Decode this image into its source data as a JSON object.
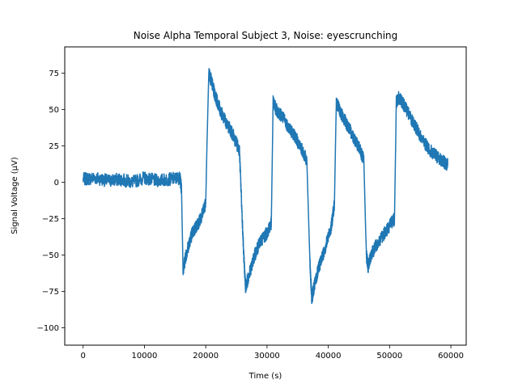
{
  "chart_data": {
    "type": "line",
    "title": "Noise Alpha Temporal Subject 3, Noise: eyescrunching",
    "xlabel": "Time (s)",
    "ylabel": "Signal Voltage (μV)",
    "xlim": [
      -3000,
      62500
    ],
    "ylim": [
      -112,
      93
    ],
    "xticks": [
      0,
      10000,
      20000,
      30000,
      40000,
      50000,
      60000
    ],
    "xtick_labels": [
      "0",
      "10000",
      "20000",
      "30000",
      "40000",
      "50000",
      "60000"
    ],
    "yticks": [
      75,
      50,
      25,
      0,
      -25,
      -50,
      -75,
      -100
    ],
    "ytick_labels": [
      "75",
      "50",
      "25",
      "0",
      "−25",
      "−50",
      "−75",
      "−100"
    ],
    "grid": false,
    "series": [
      {
        "color": "#1f77b4",
        "x": [
          0,
          2000,
          4000,
          6000,
          8000,
          10000,
          12000,
          14000,
          15800,
          16050,
          16300,
          16800,
          17400,
          17800,
          18500,
          19200,
          20000,
          20200,
          20500,
          20900,
          21500,
          22500,
          23500,
          24500,
          25500,
          26200,
          26500,
          27000,
          28000,
          29000,
          30000,
          30700,
          31000,
          31500,
          32500,
          33500,
          34500,
          35500,
          36500,
          37000,
          37300,
          37800,
          38500,
          39500,
          40500,
          41000,
          41300,
          42000,
          43000,
          44000,
          45000,
          45800,
          46200,
          46500,
          47000,
          48000,
          49500,
          50800,
          51100,
          51500,
          52500,
          54000,
          55500,
          57000,
          58500,
          59500
        ],
        "y": [
          2,
          3,
          1,
          2,
          0,
          3,
          1,
          2,
          3,
          -5,
          -60,
          -50,
          -40,
          -35,
          -30,
          -25,
          -15,
          25,
          75,
          70,
          60,
          48,
          40,
          32,
          22,
          -50,
          -72,
          -65,
          -50,
          -40,
          -35,
          -28,
          55,
          50,
          45,
          38,
          32,
          24,
          15,
          -55,
          -80,
          -70,
          -58,
          -45,
          -30,
          -15,
          55,
          48,
          40,
          32,
          24,
          15,
          -50,
          -58,
          -50,
          -42,
          -33,
          -25,
          55,
          58,
          52,
          40,
          28,
          20,
          15,
          12
        ]
      }
    ]
  }
}
